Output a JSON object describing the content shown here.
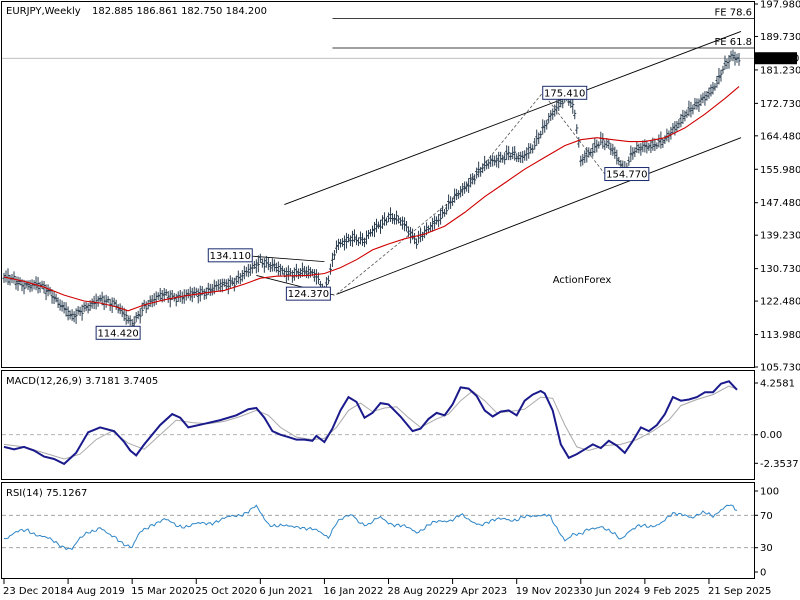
{
  "chart_data": [
    {
      "type": "line",
      "panel": "price",
      "symbol_label": "EURJPY,Weekly",
      "ohlc_label": "182.885 186.861 182.750 184.200",
      "watermark": "ActionForex",
      "last_price_label": "184.200",
      "ylim": [
        105.73,
        197.98
      ],
      "y_ticks": [
        "197.980",
        "189.730",
        "181.230",
        "172.730",
        "164.480",
        "155.980",
        "147.480",
        "139.230",
        "130.730",
        "122.480",
        "113.980",
        "105.730"
      ],
      "x_ticks": [
        {
          "label": "23 Dec 2018",
          "t": 0
        },
        {
          "label": "4 Aug 2019",
          "t": 32
        },
        {
          "label": "15 Mar 2020",
          "t": 64
        },
        {
          "label": "25 Oct 2020",
          "t": 96
        },
        {
          "label": "6 Jun 2021",
          "t": 128
        },
        {
          "label": "16 Jan 2022",
          "t": 160
        },
        {
          "label": "28 Aug 2022",
          "t": 192
        },
        {
          "label": "9 Apr 2023",
          "t": 224
        },
        {
          "label": "19 Nov 2023",
          "t": 256
        },
        {
          "label": "30 Jun 2024",
          "t": 288
        },
        {
          "label": "9 Feb 2025",
          "t": 320
        },
        {
          "label": "21 Sep 2025",
          "t": 352
        }
      ],
      "price_path": [
        [
          0,
          128.5
        ],
        [
          8,
          127.0
        ],
        [
          16,
          126.5
        ],
        [
          24,
          124.5
        ],
        [
          34,
          118.0
        ],
        [
          40,
          121.0
        ],
        [
          48,
          122.5
        ],
        [
          56,
          122.0
        ],
        [
          64,
          116.0
        ],
        [
          70,
          121.5
        ],
        [
          80,
          124.0
        ],
        [
          90,
          123.5
        ],
        [
          100,
          125.0
        ],
        [
          110,
          126.5
        ],
        [
          116,
          128.0
        ],
        [
          124,
          130.5
        ],
        [
          128,
          133.0
        ],
        [
          132,
          132.0
        ],
        [
          140,
          129.5
        ],
        [
          148,
          130.0
        ],
        [
          156,
          129.0
        ],
        [
          160,
          125.0
        ],
        [
          166,
          136.0
        ],
        [
          174,
          139.0
        ],
        [
          180,
          137.5
        ],
        [
          186,
          141.5
        ],
        [
          192,
          144.0
        ],
        [
          200,
          142.0
        ],
        [
          206,
          138.0
        ],
        [
          212,
          140.5
        ],
        [
          216,
          143.0
        ],
        [
          222,
          147.0
        ],
        [
          228,
          150.0
        ],
        [
          236,
          155.0
        ],
        [
          244,
          158.0
        ],
        [
          252,
          160.0
        ],
        [
          258,
          158.5
        ],
        [
          264,
          162.0
        ],
        [
          270,
          166.5
        ],
        [
          276,
          172.0
        ],
        [
          281,
          175.0
        ],
        [
          285,
          170.0
        ],
        [
          288,
          158.0
        ],
        [
          292,
          160.5
        ],
        [
          298,
          163.0
        ],
        [
          304,
          161.0
        ],
        [
          310,
          156.0
        ],
        [
          314,
          160.0
        ],
        [
          320,
          162.0
        ],
        [
          326,
          162.5
        ],
        [
          330,
          163.0
        ],
        [
          334,
          166.0
        ],
        [
          340,
          170.0
        ],
        [
          346,
          172.0
        ],
        [
          350,
          174.5
        ],
        [
          356,
          178.0
        ],
        [
          360,
          182.0
        ],
        [
          364,
          185.0
        ],
        [
          367,
          184.2
        ]
      ],
      "ma_path": [
        [
          0,
          128.6
        ],
        [
          10,
          127.5
        ],
        [
          20,
          126.0
        ],
        [
          30,
          124.0
        ],
        [
          40,
          122.5
        ],
        [
          48,
          122.0
        ],
        [
          56,
          121.0
        ],
        [
          62,
          120.0
        ],
        [
          70,
          121.5
        ],
        [
          80,
          122.8
        ],
        [
          90,
          123.8
        ],
        [
          100,
          124.5
        ],
        [
          110,
          125.2
        ],
        [
          120,
          126.8
        ],
        [
          128,
          128.3
        ],
        [
          136,
          128.8
        ],
        [
          144,
          128.9
        ],
        [
          152,
          129.0
        ],
        [
          160,
          129.5
        ],
        [
          168,
          131.0
        ],
        [
          176,
          133.0
        ],
        [
          184,
          135.5
        ],
        [
          192,
          137.0
        ],
        [
          200,
          138.3
        ],
        [
          210,
          139.5
        ],
        [
          220,
          141.5
        ],
        [
          230,
          145.0
        ],
        [
          240,
          149.0
        ],
        [
          250,
          152.5
        ],
        [
          260,
          156.0
        ],
        [
          270,
          159.0
        ],
        [
          280,
          162.0
        ],
        [
          288,
          163.5
        ],
        [
          296,
          164.0
        ],
        [
          304,
          163.5
        ],
        [
          312,
          163.0
        ],
        [
          320,
          163.0
        ],
        [
          330,
          164.0
        ],
        [
          340,
          166.5
        ],
        [
          350,
          170.0
        ],
        [
          360,
          174.0
        ],
        [
          367,
          177.0
        ]
      ],
      "channel_upper": [
        [
          140,
          147.0
        ],
        [
          368,
          191.0
        ]
      ],
      "channel_lower": [
        [
          166,
          124.2
        ],
        [
          368,
          164.0
        ]
      ],
      "fib_levels": [
        {
          "label": "FE 78.6",
          "y": 194.3,
          "x_from": 164
        },
        {
          "label": "FE 61.8",
          "y": 186.8,
          "x_from": 164
        }
      ],
      "annotations": [
        {
          "label": "175.410",
          "t": 269,
          "y": 175.41
        },
        {
          "label": "154.770",
          "t": 300,
          "y": 154.77
        },
        {
          "label": "134.110",
          "t": 102,
          "y": 134.11
        },
        {
          "label": "124.370",
          "t": 141,
          "y": 124.37
        },
        {
          "label": "114.420",
          "t": 46,
          "y": 114.42
        }
      ]
    },
    {
      "type": "line",
      "panel": "macd",
      "title_label": "MACD(12,26,9) 3.7181 3.7405",
      "ylim": [
        -3.4,
        5.0
      ],
      "y_ticks": [
        "4.2581",
        "0.00",
        "-2.3537"
      ],
      "macd": [
        [
          0,
          -1.0
        ],
        [
          5,
          -1.2
        ],
        [
          10,
          -1.0
        ],
        [
          15,
          -1.3
        ],
        [
          20,
          -1.8
        ],
        [
          25,
          -2.0
        ],
        [
          30,
          -2.4
        ],
        [
          36,
          -1.5
        ],
        [
          42,
          0.2
        ],
        [
          48,
          0.6
        ],
        [
          55,
          0.3
        ],
        [
          60,
          -0.6
        ],
        [
          63,
          -1.3
        ],
        [
          66,
          -1.7
        ],
        [
          70,
          -0.8
        ],
        [
          78,
          0.8
        ],
        [
          84,
          1.7
        ],
        [
          88,
          1.4
        ],
        [
          92,
          0.6
        ],
        [
          100,
          0.9
        ],
        [
          108,
          1.2
        ],
        [
          116,
          1.6
        ],
        [
          122,
          2.1
        ],
        [
          126,
          2.2
        ],
        [
          130,
          1.4
        ],
        [
          134,
          0.3
        ],
        [
          138,
          0.0
        ],
        [
          142,
          -0.2
        ],
        [
          146,
          -0.4
        ],
        [
          150,
          -0.4
        ],
        [
          154,
          -0.5
        ],
        [
          156,
          -0.1
        ],
        [
          160,
          -0.6
        ],
        [
          164,
          0.5
        ],
        [
          168,
          2.0
        ],
        [
          172,
          3.1
        ],
        [
          176,
          2.7
        ],
        [
          180,
          1.4
        ],
        [
          184,
          1.8
        ],
        [
          188,
          2.6
        ],
        [
          192,
          2.5
        ],
        [
          198,
          1.5
        ],
        [
          204,
          0.3
        ],
        [
          208,
          0.5
        ],
        [
          212,
          1.3
        ],
        [
          216,
          1.8
        ],
        [
          220,
          1.6
        ],
        [
          224,
          2.5
        ],
        [
          228,
          3.9
        ],
        [
          232,
          3.8
        ],
        [
          236,
          3.2
        ],
        [
          240,
          2.0
        ],
        [
          244,
          1.5
        ],
        [
          248,
          1.9
        ],
        [
          252,
          2.0
        ],
        [
          256,
          1.6
        ],
        [
          260,
          2.8
        ],
        [
          264,
          3.3
        ],
        [
          268,
          3.6
        ],
        [
          270,
          3.4
        ],
        [
          274,
          2.0
        ],
        [
          278,
          -0.8
        ],
        [
          282,
          -1.9
        ],
        [
          286,
          -1.6
        ],
        [
          290,
          -1.2
        ],
        [
          294,
          -0.8
        ],
        [
          298,
          -1.1
        ],
        [
          302,
          -0.5
        ],
        [
          306,
          -0.9
        ],
        [
          310,
          -1.5
        ],
        [
          314,
          -0.5
        ],
        [
          318,
          0.6
        ],
        [
          322,
          0.3
        ],
        [
          326,
          0.8
        ],
        [
          330,
          1.7
        ],
        [
          334,
          3.1
        ],
        [
          338,
          2.8
        ],
        [
          342,
          2.9
        ],
        [
          346,
          3.1
        ],
        [
          350,
          3.5
        ],
        [
          354,
          3.5
        ],
        [
          358,
          4.2
        ],
        [
          362,
          4.4
        ],
        [
          366,
          3.7
        ]
      ],
      "signal": [
        [
          0,
          -0.8
        ],
        [
          10,
          -1.0
        ],
        [
          20,
          -1.5
        ],
        [
          30,
          -2.0
        ],
        [
          38,
          -1.6
        ],
        [
          46,
          -0.4
        ],
        [
          54,
          0.3
        ],
        [
          62,
          -0.7
        ],
        [
          70,
          -1.2
        ],
        [
          78,
          0.0
        ],
        [
          86,
          1.2
        ],
        [
          94,
          1.0
        ],
        [
          102,
          0.9
        ],
        [
          110,
          1.1
        ],
        [
          118,
          1.5
        ],
        [
          126,
          2.0
        ],
        [
          132,
          1.6
        ],
        [
          138,
          0.6
        ],
        [
          146,
          -0.2
        ],
        [
          154,
          -0.4
        ],
        [
          160,
          -0.3
        ],
        [
          166,
          0.6
        ],
        [
          172,
          2.0
        ],
        [
          178,
          2.6
        ],
        [
          184,
          1.9
        ],
        [
          190,
          2.2
        ],
        [
          196,
          2.3
        ],
        [
          202,
          1.4
        ],
        [
          208,
          0.6
        ],
        [
          216,
          1.3
        ],
        [
          222,
          1.7
        ],
        [
          228,
          2.8
        ],
        [
          234,
          3.6
        ],
        [
          240,
          2.8
        ],
        [
          246,
          1.8
        ],
        [
          252,
          1.9
        ],
        [
          260,
          2.1
        ],
        [
          268,
          3.1
        ],
        [
          274,
          3.0
        ],
        [
          280,
          0.8
        ],
        [
          286,
          -1.0
        ],
        [
          292,
          -1.3
        ],
        [
          300,
          -0.9
        ],
        [
          308,
          -0.8
        ],
        [
          316,
          -0.4
        ],
        [
          324,
          0.3
        ],
        [
          332,
          1.2
        ],
        [
          338,
          2.4
        ],
        [
          346,
          2.9
        ],
        [
          354,
          3.3
        ],
        [
          362,
          4.0
        ],
        [
          366,
          3.74
        ]
      ]
    },
    {
      "type": "line",
      "panel": "rsi",
      "title_label": "RSI(14) 75.1267",
      "ylim": [
        0,
        100
      ],
      "y_ticks": [
        "100",
        "70",
        "30",
        "0"
      ],
      "levels": [
        70,
        30
      ],
      "values": [
        [
          0,
          42
        ],
        [
          6,
          48
        ],
        [
          12,
          52
        ],
        [
          18,
          45
        ],
        [
          24,
          38
        ],
        [
          30,
          32
        ],
        [
          34,
          28
        ],
        [
          38,
          40
        ],
        [
          42,
          50
        ],
        [
          48,
          55
        ],
        [
          52,
          45
        ],
        [
          56,
          42
        ],
        [
          60,
          36
        ],
        [
          64,
          30
        ],
        [
          68,
          48
        ],
        [
          74,
          60
        ],
        [
          80,
          64
        ],
        [
          86,
          58
        ],
        [
          92,
          57
        ],
        [
          98,
          59
        ],
        [
          104,
          62
        ],
        [
          110,
          65
        ],
        [
          116,
          70
        ],
        [
          122,
          75
        ],
        [
          126,
          80
        ],
        [
          128,
          72
        ],
        [
          132,
          60
        ],
        [
          136,
          58
        ],
        [
          142,
          55
        ],
        [
          148,
          57
        ],
        [
          154,
          52
        ],
        [
          158,
          48
        ],
        [
          162,
          44
        ],
        [
          166,
          62
        ],
        [
          170,
          66
        ],
        [
          174,
          70
        ],
        [
          178,
          62
        ],
        [
          182,
          58
        ],
        [
          188,
          67
        ],
        [
          194,
          60
        ],
        [
          200,
          55
        ],
        [
          206,
          50
        ],
        [
          212,
          58
        ],
        [
          218,
          62
        ],
        [
          224,
          66
        ],
        [
          228,
          70
        ],
        [
          232,
          63
        ],
        [
          238,
          60
        ],
        [
          244,
          62
        ],
        [
          250,
          67
        ],
        [
          256,
          64
        ],
        [
          262,
          68
        ],
        [
          268,
          72
        ],
        [
          272,
          70
        ],
        [
          276,
          52
        ],
        [
          280,
          40
        ],
        [
          284,
          48
        ],
        [
          288,
          45
        ],
        [
          292,
          52
        ],
        [
          298,
          58
        ],
        [
          302,
          50
        ],
        [
          308,
          40
        ],
        [
          312,
          52
        ],
        [
          316,
          56
        ],
        [
          322,
          55
        ],
        [
          328,
          62
        ],
        [
          334,
          70
        ],
        [
          340,
          72
        ],
        [
          344,
          68
        ],
        [
          350,
          72
        ],
        [
          354,
          70
        ],
        [
          358,
          78
        ],
        [
          362,
          82
        ],
        [
          366,
          75
        ]
      ]
    }
  ]
}
